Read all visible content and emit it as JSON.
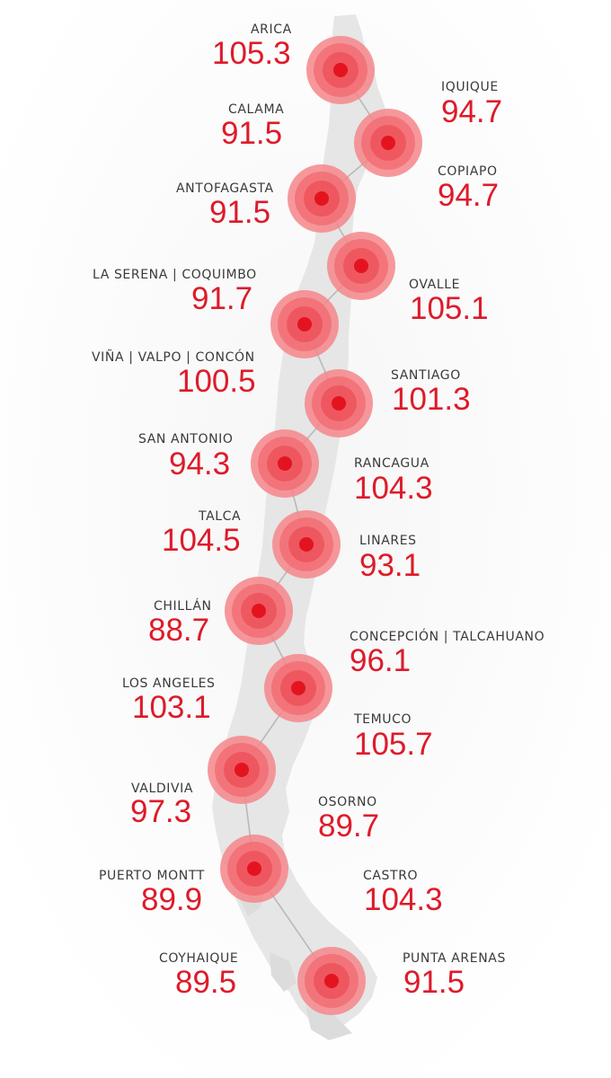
{
  "colors": {
    "accent": "#e3141f",
    "halo": "#f4747a",
    "land": "#e6e6e6",
    "route": "#b9b9b9",
    "label": "#3a3a3a"
  },
  "marker_icon": "concentric-circle-marker-icon",
  "locations": [
    {
      "name": "ARICA",
      "value": "105.3"
    },
    {
      "name": "IQUIQUE",
      "value": "94.7"
    },
    {
      "name": "CALAMA",
      "value": "91.5"
    },
    {
      "name": "COPIAPO",
      "value": "94.7"
    },
    {
      "name": "ANTOFAGASTA",
      "value": "91.5"
    },
    {
      "name": "OVALLE",
      "value": "105.1"
    },
    {
      "name": "LA SERENA | COQUIMBO",
      "value": "91.7"
    },
    {
      "name": "SANTIAGO",
      "value": "101.3"
    },
    {
      "name": "VIÑA | VALPO | CONCÓN",
      "value": "100.5"
    },
    {
      "name": "RANCAGUA",
      "value": "104.3"
    },
    {
      "name": "SAN ANTONIO",
      "value": "94.3"
    },
    {
      "name": "LINARES",
      "value": "93.1"
    },
    {
      "name": "TALCA",
      "value": "104.5"
    },
    {
      "name": "CONCEPCIÓN | TALCAHUANO",
      "value": "96.1"
    },
    {
      "name": "CHILLÁN",
      "value": "88.7"
    },
    {
      "name": "TEMUCO",
      "value": "105.7"
    },
    {
      "name": "LOS ANGELES",
      "value": "103.1"
    },
    {
      "name": "OSORNO",
      "value": "89.7"
    },
    {
      "name": "VALDIVIA",
      "value": "97.3"
    },
    {
      "name": "CASTRO",
      "value": "104.3"
    },
    {
      "name": "PUERTO MONTT",
      "value": "89.9"
    },
    {
      "name": "PUNTA ARENAS",
      "value": "91.5"
    },
    {
      "name": "COYHAIQUE",
      "value": "89.5"
    }
  ]
}
